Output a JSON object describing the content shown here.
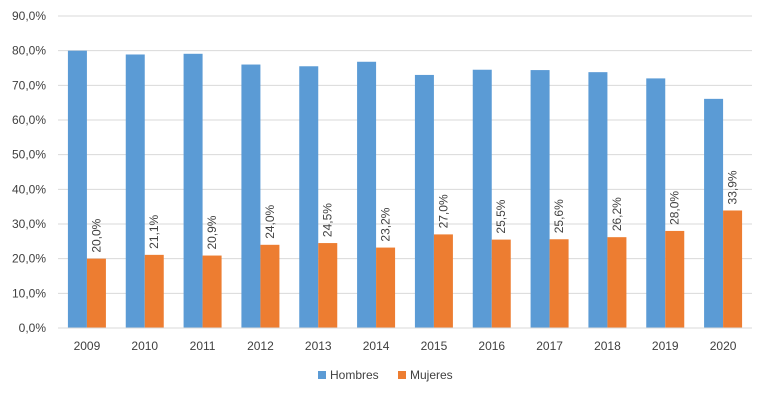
{
  "chart_data": {
    "type": "bar",
    "categories": [
      "2009",
      "2010",
      "2011",
      "2012",
      "2013",
      "2014",
      "2015",
      "2016",
      "2017",
      "2018",
      "2019",
      "2020"
    ],
    "series": [
      {
        "name": "Hombres",
        "color": "#5B9BD5",
        "values": [
          80.0,
          78.9,
          79.1,
          76.0,
          75.5,
          76.8,
          73.0,
          74.5,
          74.4,
          73.8,
          72.0,
          66.1
        ]
      },
      {
        "name": "Mujeres",
        "color": "#ED7D31",
        "values": [
          20.0,
          21.1,
          20.9,
          24.0,
          24.5,
          23.2,
          27.0,
          25.5,
          25.6,
          26.2,
          28.0,
          33.9
        ]
      }
    ],
    "data_labels": {
      "Mujeres": [
        "20,0%",
        "21,1%",
        "20,9%",
        "24,0%",
        "24,5%",
        "23,2%",
        "27,0%",
        "25,5%",
        "25,6%",
        "26,2%",
        "28,0%",
        "33,9%"
      ]
    },
    "y_ticks": [
      "0,0%",
      "10,0%",
      "20,0%",
      "30,0%",
      "40,0%",
      "50,0%",
      "60,0%",
      "70,0%",
      "80,0%",
      "90,0%"
    ],
    "ylim": [
      0,
      90
    ],
    "grid": true,
    "legend": "bottom",
    "title": "",
    "xlabel": "",
    "ylabel": ""
  }
}
